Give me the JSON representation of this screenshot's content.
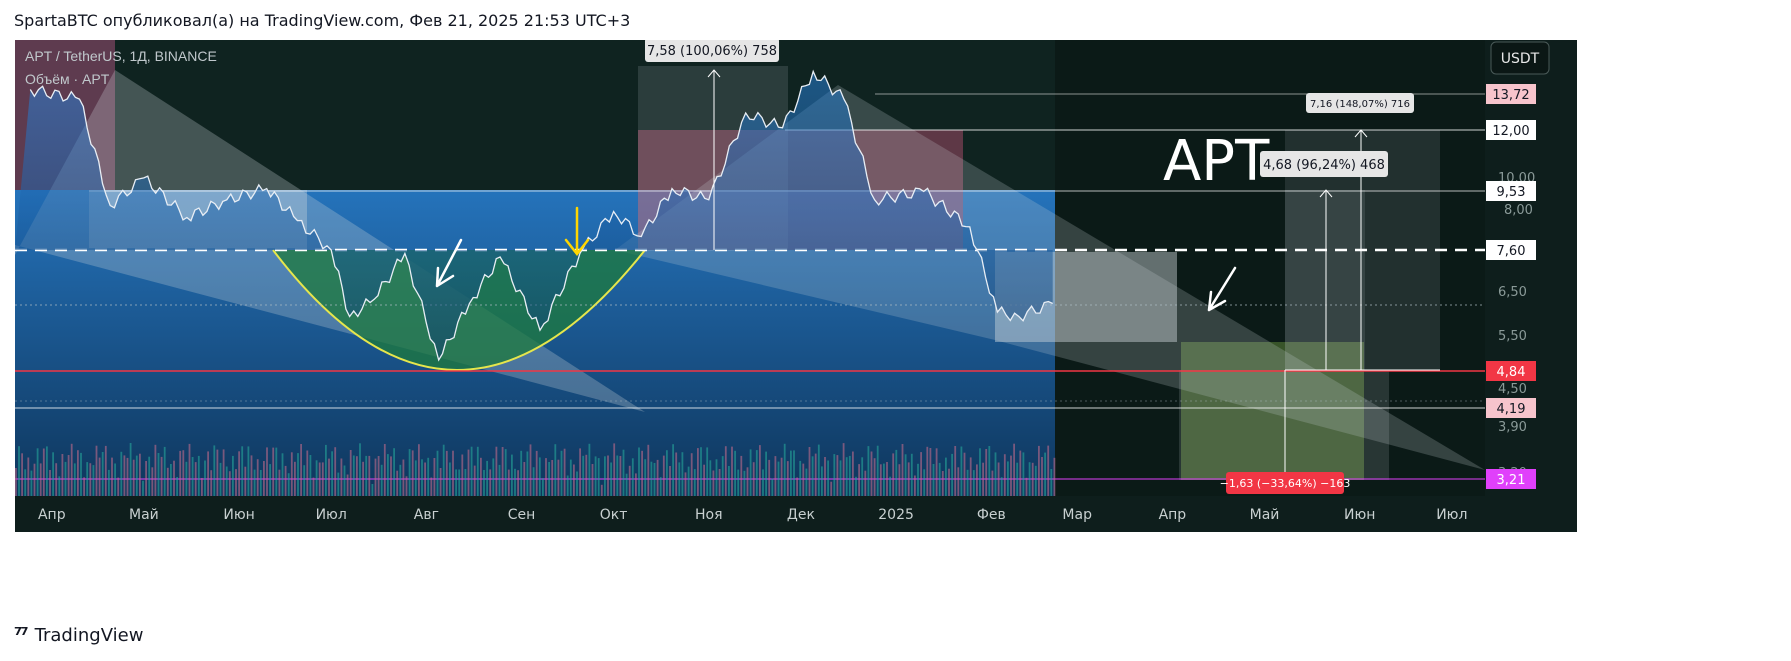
{
  "header": {
    "caption": "SpartaBTC опубликовал(а) на TradingView.com, Фев 21, 2025 21:53 UTC+3"
  },
  "footer": {
    "logo_icon": "tradingview-logo-icon",
    "brand": "TradingView"
  },
  "legend": {
    "symbol_line": "APT / TetherUS, 1Д, BINANCE",
    "volume_line": "Объём · APT"
  },
  "currency_button": "USDT",
  "big_label": "APT",
  "colors": {
    "background": "#0f2320",
    "price_line": "#e8eef5",
    "fill_blue": "#1f6fc0",
    "fill_pink": "#c06a8a",
    "fill_green": "#1e7a3c",
    "cup_curve": "#e6e64c",
    "support_red": "#f23645",
    "magenta_tag": "#e040fb"
  },
  "chart_data": {
    "type": "line",
    "symbol": "APT / TetherUS",
    "timeframe": "1Д",
    "exchange": "BINANCE",
    "x_ticks": [
      "Апр",
      "Май",
      "Июн",
      "Июл",
      "Авг",
      "Сен",
      "Окт",
      "Ноя",
      "Дек",
      "2025",
      "Фев",
      "Мар",
      "Апр",
      "Май",
      "Июн",
      "Июл"
    ],
    "y_ticks": [
      "10,00",
      "8,00",
      "6,50",
      "5,50",
      "4,50",
      "3,90",
      "3,20"
    ],
    "y_scale": "log",
    "price_levels": [
      {
        "value": "13,72",
        "style": "pink-tag"
      },
      {
        "value": "12,00",
        "style": "white-tag"
      },
      {
        "value": "9,53",
        "style": "white-tag"
      },
      {
        "value": "7,60",
        "style": "white-tag"
      },
      {
        "value": "4,84",
        "style": "red-tag"
      },
      {
        "value": "4,19",
        "style": "pink-tag"
      },
      {
        "value": "3,21",
        "style": "magenta-tag"
      }
    ],
    "measure_labels": [
      {
        "text": "7,58 (100,06%) 758"
      },
      {
        "text": "7,16 (148,07%) 716"
      },
      {
        "text": "4,68 (96,24%) 468"
      },
      {
        "text": "−1,63 (−33,64%) −163"
      }
    ],
    "price_series": [
      {
        "date": "2024-03-25",
        "close": 14.0
      },
      {
        "date": "2024-04-10",
        "close": 13.5
      },
      {
        "date": "2024-04-20",
        "close": 9.0
      },
      {
        "date": "2024-05-01",
        "close": 10.0
      },
      {
        "date": "2024-05-15",
        "close": 8.6
      },
      {
        "date": "2024-05-28",
        "close": 9.2
      },
      {
        "date": "2024-06-10",
        "close": 9.6
      },
      {
        "date": "2024-06-20",
        "close": 8.5
      },
      {
        "date": "2024-07-01",
        "close": 7.6
      },
      {
        "date": "2024-07-07",
        "close": 5.9
      },
      {
        "date": "2024-07-15",
        "close": 6.3
      },
      {
        "date": "2024-07-25",
        "close": 7.5
      },
      {
        "date": "2024-08-05",
        "close": 5.0
      },
      {
        "date": "2024-08-15",
        "close": 6.2
      },
      {
        "date": "2024-08-25",
        "close": 7.4
      },
      {
        "date": "2024-09-07",
        "close": 5.6
      },
      {
        "date": "2024-09-20",
        "close": 7.5
      },
      {
        "date": "2024-10-01",
        "close": 8.8
      },
      {
        "date": "2024-10-10",
        "close": 8.0
      },
      {
        "date": "2024-10-20",
        "close": 9.6
      },
      {
        "date": "2024-11-01",
        "close": 9.2
      },
      {
        "date": "2024-11-13",
        "close": 12.8
      },
      {
        "date": "2024-11-25",
        "close": 12.1
      },
      {
        "date": "2024-12-05",
        "close": 15.0
      },
      {
        "date": "2024-12-15",
        "close": 13.5
      },
      {
        "date": "2024-12-25",
        "close": 9.2
      },
      {
        "date": "2025-01-10",
        "close": 9.5
      },
      {
        "date": "2025-01-25",
        "close": 8.3
      },
      {
        "date": "2025-02-03",
        "close": 6.0
      },
      {
        "date": "2025-02-10",
        "close": 5.9
      },
      {
        "date": "2025-02-21",
        "close": 6.2
      }
    ]
  }
}
